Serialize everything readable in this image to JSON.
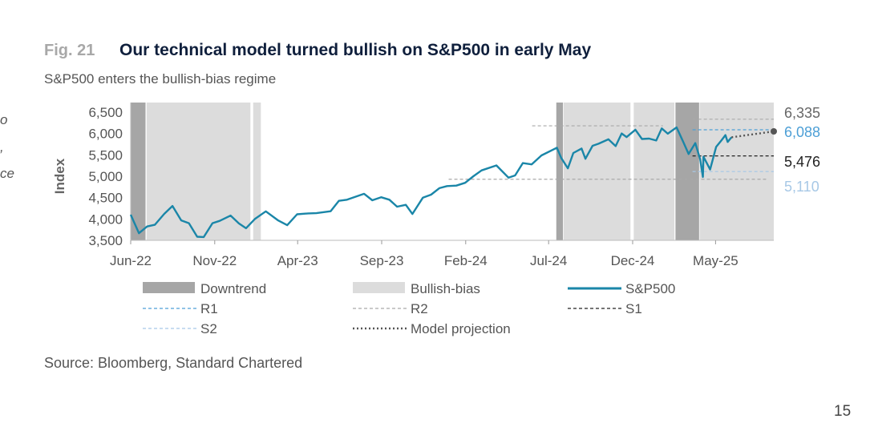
{
  "header": {
    "fig_label": "Fig. 21",
    "title": "Our technical model turned bullish on S&P500 in early May",
    "subtitle": "S&P500 enters the bullish-bias regime"
  },
  "left_fragments": [
    "o",
    ",",
    "ce"
  ],
  "source": "Source: Bloomberg, Standard Chartered",
  "page_number": "15",
  "colors": {
    "downtrend": "#a6a6a6",
    "bullish_bias": "#dcdcdc",
    "sp500": "#1a86a8",
    "r1": "#4d9fd6",
    "r2": "#a9a9a9",
    "s1": "#222222",
    "s2": "#a7c8e6",
    "projection": "#555555",
    "label_sp500_level": "#4d9fd6",
    "label_s2_level": "#a7c8e6"
  },
  "chart_data": {
    "type": "line",
    "ylabel": "Index",
    "xlabel": "",
    "ylim": [
      3500,
      6500
    ],
    "yticks": [
      "3,500",
      "4,000",
      "4,500",
      "5,000",
      "5,500",
      "6,000",
      "6,500"
    ],
    "yticks_values": [
      3500,
      4000,
      4500,
      5000,
      5500,
      6000,
      6500
    ],
    "xlim": [
      "2022-06-01",
      "2025-08-15"
    ],
    "xticks": [
      "Jun-22",
      "Nov-22",
      "Apr-23",
      "Sep-23",
      "Feb-24",
      "Jul-24",
      "Dec-24",
      "May-25"
    ],
    "xticks_dates": [
      "2022-06-01",
      "2022-11-01",
      "2023-04-01",
      "2023-09-01",
      "2024-02-01",
      "2024-07-01",
      "2024-12-01",
      "2025-05-01"
    ],
    "regimes": [
      {
        "type": "downtrend",
        "start": "2022-06-01",
        "end": "2022-06-28"
      },
      {
        "type": "bullish-bias",
        "start": "2022-06-30",
        "end": "2023-01-05"
      },
      {
        "type": "bullish-bias",
        "start": "2023-01-10",
        "end": "2023-01-24"
      },
      {
        "type": "downtrend",
        "start": "2024-07-15",
        "end": "2024-07-27"
      },
      {
        "type": "bullish-bias",
        "start": "2024-07-28",
        "end": "2024-11-27"
      },
      {
        "type": "bullish-bias",
        "start": "2024-12-03",
        "end": "2025-02-15"
      },
      {
        "type": "downtrend",
        "start": "2025-02-17",
        "end": "2025-04-01"
      },
      {
        "type": "bullish-bias",
        "start": "2025-04-02",
        "end": "2025-08-15"
      }
    ],
    "series": [
      {
        "name": "S&P500",
        "points": [
          [
            "2022-06-01",
            4100
          ],
          [
            "2022-06-16",
            3666
          ],
          [
            "2022-07-01",
            3825
          ],
          [
            "2022-07-15",
            3863
          ],
          [
            "2022-08-01",
            4118
          ],
          [
            "2022-08-16",
            4305
          ],
          [
            "2022-09-01",
            3966
          ],
          [
            "2022-09-15",
            3901
          ],
          [
            "2022-09-30",
            3585
          ],
          [
            "2022-10-12",
            3577
          ],
          [
            "2022-10-28",
            3901
          ],
          [
            "2022-11-10",
            3956
          ],
          [
            "2022-11-30",
            4080
          ],
          [
            "2022-12-15",
            3895
          ],
          [
            "2022-12-28",
            3783
          ],
          [
            "2023-01-13",
            3999
          ],
          [
            "2023-02-02",
            4179
          ],
          [
            "2023-02-24",
            3970
          ],
          [
            "2023-03-13",
            3855
          ],
          [
            "2023-03-31",
            4109
          ],
          [
            "2023-04-20",
            4130
          ],
          [
            "2023-05-05",
            4136
          ],
          [
            "2023-05-31",
            4180
          ],
          [
            "2023-06-15",
            4425
          ],
          [
            "2023-06-30",
            4450
          ],
          [
            "2023-07-31",
            4589
          ],
          [
            "2023-08-15",
            4437
          ],
          [
            "2023-08-31",
            4508
          ],
          [
            "2023-09-15",
            4450
          ],
          [
            "2023-09-29",
            4288
          ],
          [
            "2023-10-15",
            4330
          ],
          [
            "2023-10-27",
            4117
          ],
          [
            "2023-11-15",
            4500
          ],
          [
            "2023-11-30",
            4568
          ],
          [
            "2023-12-15",
            4720
          ],
          [
            "2023-12-29",
            4770
          ],
          [
            "2024-01-15",
            4780
          ],
          [
            "2024-01-31",
            4846
          ],
          [
            "2024-02-15",
            5000
          ],
          [
            "2024-03-01",
            5137
          ],
          [
            "2024-03-28",
            5254
          ],
          [
            "2024-04-19",
            4967
          ],
          [
            "2024-05-01",
            5018
          ],
          [
            "2024-05-15",
            5308
          ],
          [
            "2024-05-31",
            5278
          ],
          [
            "2024-06-18",
            5487
          ],
          [
            "2024-07-16",
            5667
          ],
          [
            "2024-07-24",
            5427
          ],
          [
            "2024-08-05",
            5186
          ],
          [
            "2024-08-15",
            5543
          ],
          [
            "2024-08-30",
            5648
          ],
          [
            "2024-09-06",
            5408
          ],
          [
            "2024-09-19",
            5713
          ],
          [
            "2024-09-30",
            5762
          ],
          [
            "2024-10-18",
            5864
          ],
          [
            "2024-10-31",
            5705
          ],
          [
            "2024-11-11",
            6001
          ],
          [
            "2024-11-20",
            5917
          ],
          [
            "2024-12-06",
            6090
          ],
          [
            "2024-12-18",
            5872
          ],
          [
            "2024-12-31",
            5882
          ],
          [
            "2025-01-13",
            5836
          ],
          [
            "2025-01-23",
            6119
          ],
          [
            "2025-02-03",
            5995
          ],
          [
            "2025-02-19",
            6144
          ],
          [
            "2025-03-04",
            5778
          ],
          [
            "2025-03-13",
            5521
          ],
          [
            "2025-03-25",
            5777
          ],
          [
            "2025-04-03",
            5397
          ],
          [
            "2025-04-08",
            4983
          ],
          [
            "2025-04-09",
            5457
          ],
          [
            "2025-04-21",
            5158
          ],
          [
            "2025-05-02",
            5687
          ],
          [
            "2025-05-12",
            5844
          ],
          [
            "2025-05-19",
            5964
          ],
          [
            "2025-05-23",
            5803
          ],
          [
            "2025-05-30",
            5912
          ]
        ]
      },
      {
        "name": "Model projection",
        "points": [
          [
            "2025-05-30",
            5912
          ],
          [
            "2025-08-15",
            6050
          ]
        ]
      }
    ],
    "levels": [
      {
        "name": "R1",
        "value": 6088,
        "start": "2025-03-20",
        "end": "2025-08-15",
        "label": "6,088"
      },
      {
        "name": "R2",
        "value": 6335,
        "start": "2025-03-20",
        "end": "2025-08-15",
        "label": "6,335"
      },
      {
        "name": "R2",
        "value": 6180,
        "start": "2024-06-01",
        "end": "2025-01-25",
        "label": ""
      },
      {
        "name": "S1",
        "value": 5476,
        "start": "2025-03-20",
        "end": "2025-08-15",
        "label": "5,476"
      },
      {
        "name": "S2",
        "value": 5110,
        "start": "2025-03-20",
        "end": "2025-08-15",
        "label": "5,110"
      },
      {
        "name": "R2",
        "value": 4930,
        "start": "2024-01-01",
        "end": "2025-08-01",
        "label": ""
      }
    ],
    "legend": {
      "placement": "bottom",
      "entries": [
        {
          "label": "Downtrend",
          "style": "box",
          "color_key": "downtrend"
        },
        {
          "label": "Bullish-bias",
          "style": "box",
          "color_key": "bullish_bias"
        },
        {
          "label": "S&P500",
          "style": "solid",
          "color_key": "sp500"
        },
        {
          "label": "R1",
          "style": "dashed",
          "color_key": "r1"
        },
        {
          "label": "R2",
          "style": "dashed",
          "color_key": "r2"
        },
        {
          "label": "S1",
          "style": "dashed",
          "color_key": "s1"
        },
        {
          "label": "S2",
          "style": "dashed",
          "color_key": "s2"
        },
        {
          "label": "Model projection",
          "style": "dotted",
          "color_key": "projection"
        }
      ]
    }
  }
}
